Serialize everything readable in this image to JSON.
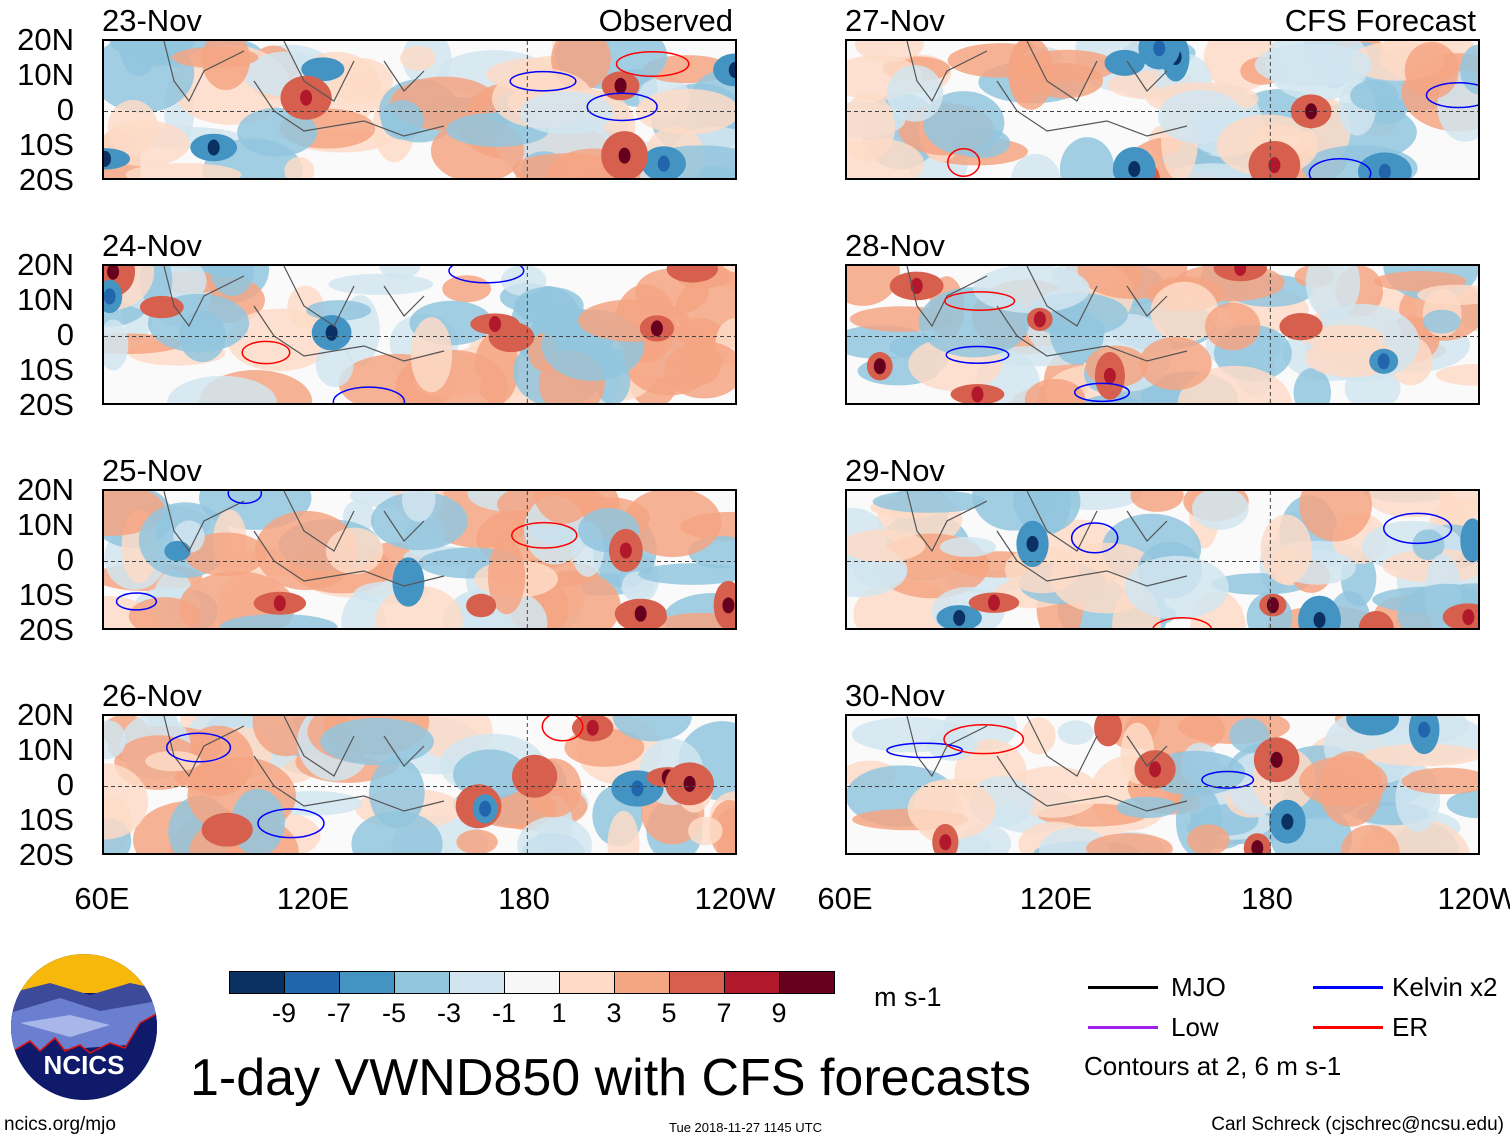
{
  "chart_data": {
    "type": "heatmap",
    "title": "1-day VWND850 with CFS forecasts",
    "units": "m s-1",
    "column_headers": {
      "left": "Observed",
      "right": "CFS Forecast"
    },
    "panels": [
      {
        "date": "23-Nov",
        "source": "Observed"
      },
      {
        "date": "24-Nov",
        "source": "Observed"
      },
      {
        "date": "25-Nov",
        "source": "Observed"
      },
      {
        "date": "26-Nov",
        "source": "Observed"
      },
      {
        "date": "27-Nov",
        "source": "CFS Forecast"
      },
      {
        "date": "28-Nov",
        "source": "CFS Forecast"
      },
      {
        "date": "29-Nov",
        "source": "CFS Forecast"
      },
      {
        "date": "30-Nov",
        "source": "CFS Forecast"
      }
    ],
    "lat_ticks": [
      "20N",
      "10N",
      "0",
      "10S",
      "20S"
    ],
    "lon_ticks": [
      "60E",
      "120E",
      "180",
      "120W"
    ],
    "lat_range": [
      -20,
      20
    ],
    "lon_range": [
      60,
      240
    ],
    "colorbar": {
      "labels": [
        "-9",
        "-7",
        "-5",
        "-3",
        "-1",
        "1",
        "3",
        "5",
        "7",
        "9"
      ],
      "colors": [
        "#0a3161",
        "#2166ac",
        "#4393c3",
        "#92c5de",
        "#d1e5f0",
        "#f7f7f7",
        "#fddbc7",
        "#f4a582",
        "#d6604d",
        "#b2182b",
        "#67001f"
      ]
    },
    "legend": [
      {
        "label": "MJO",
        "color": "#000000"
      },
      {
        "label": "Kelvin x2",
        "color": "#0000ff"
      },
      {
        "label": "Low",
        "color": "#a020f0"
      },
      {
        "label": "ER",
        "color": "#ff0000"
      }
    ],
    "contour_note": "Contours at 2, 6 m s-1"
  },
  "footer": {
    "logo_text": "NCICS",
    "url": "ncics.org/mjo",
    "timestamp": "Tue 2018-11-27 1145 UTC",
    "credit": "Carl Schreck (cjschrec@ncsu.edu)"
  }
}
